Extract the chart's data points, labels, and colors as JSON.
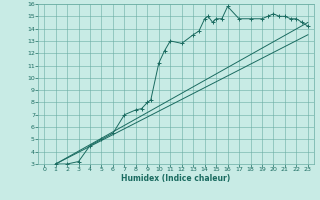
{
  "xlabel": "Humidex (Indice chaleur)",
  "bg_color": "#c8ebe5",
  "grid_color": "#6aada3",
  "line_color": "#1a6b60",
  "xlim": [
    -0.5,
    23.5
  ],
  "ylim": [
    3,
    16
  ],
  "xticks": [
    0,
    1,
    2,
    3,
    4,
    5,
    6,
    7,
    8,
    9,
    10,
    11,
    12,
    13,
    14,
    15,
    16,
    17,
    18,
    19,
    20,
    21,
    22,
    23
  ],
  "yticks": [
    3,
    4,
    5,
    6,
    7,
    8,
    9,
    10,
    11,
    12,
    13,
    14,
    15,
    16
  ],
  "line1_x": [
    1,
    23
  ],
  "line1_y": [
    3.0,
    13.5
  ],
  "line2_x": [
    1,
    23
  ],
  "line2_y": [
    3.0,
    14.5
  ],
  "main_x": [
    1,
    2,
    3,
    4,
    5,
    6,
    7,
    8,
    8.5,
    9,
    9.3,
    10,
    10.5,
    11,
    12,
    13,
    13.5,
    14,
    14.3,
    14.7,
    15,
    15.5,
    16,
    17,
    18,
    19,
    19.5,
    20,
    20.5,
    21,
    21.5,
    22,
    22.5,
    23
  ],
  "main_y": [
    3.0,
    3.0,
    3.2,
    4.5,
    5.0,
    5.5,
    7.0,
    7.4,
    7.5,
    8.0,
    8.2,
    11.2,
    12.2,
    13.0,
    12.8,
    13.5,
    13.8,
    14.8,
    15.0,
    14.5,
    14.8,
    14.8,
    15.8,
    14.8,
    14.8,
    14.8,
    15.0,
    15.2,
    15.0,
    15.0,
    14.8,
    14.8,
    14.5,
    14.2
  ]
}
